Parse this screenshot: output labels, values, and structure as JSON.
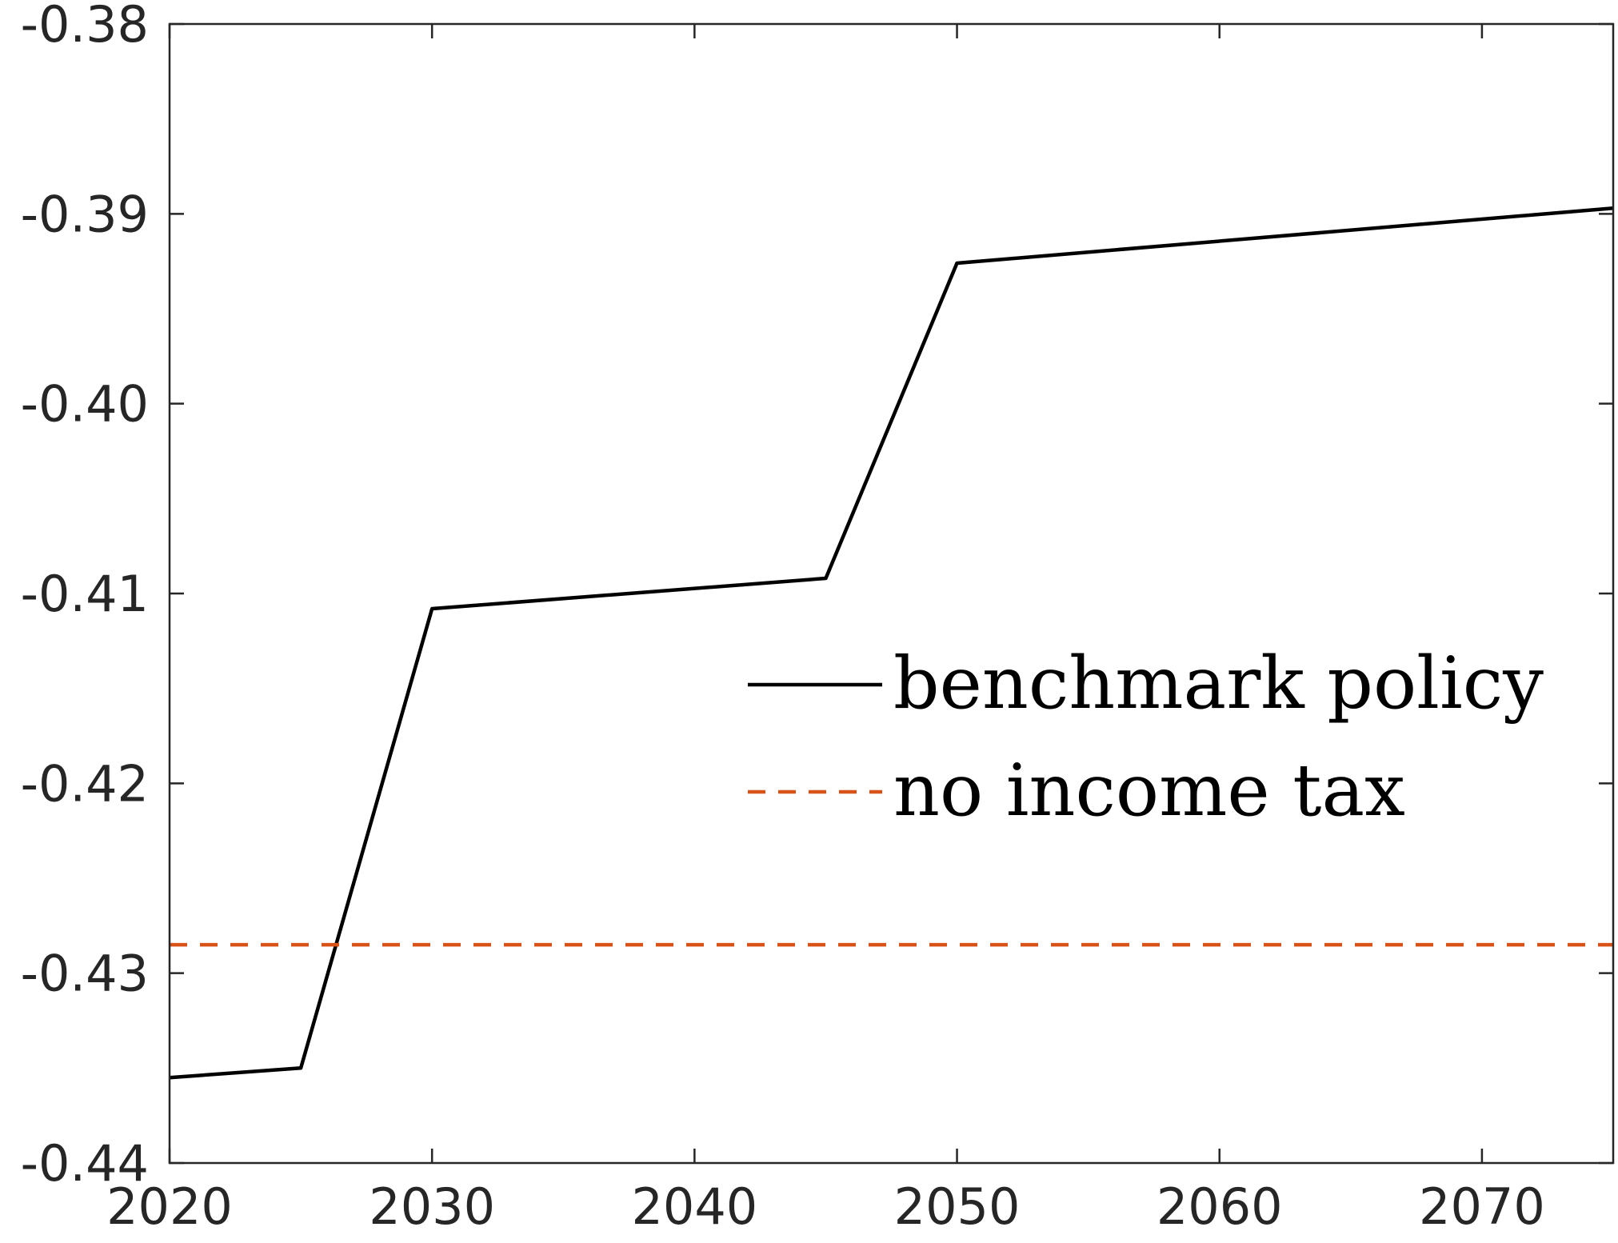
{
  "chart_data": {
    "type": "line",
    "title": "",
    "xlabel": "",
    "ylabel": "",
    "xlim": [
      2020,
      2075
    ],
    "ylim": [
      -0.44,
      -0.38
    ],
    "xticks": [
      2020,
      2030,
      2040,
      2050,
      2060,
      2070
    ],
    "xtick_labels": [
      "2020",
      "2030",
      "2040",
      "2050",
      "2060",
      "2070"
    ],
    "yticks": [
      -0.38,
      -0.39,
      -0.4,
      -0.41,
      -0.42,
      -0.43,
      -0.44
    ],
    "ytick_labels": [
      "-0.38",
      "-0.39",
      "-0.40",
      "-0.41",
      "-0.42",
      "-0.43",
      "-0.44"
    ],
    "grid": false,
    "legend_position": "center-right",
    "series": [
      {
        "name": "benchmark policy",
        "color": "#000000",
        "style": "solid",
        "x": [
          2020,
          2025,
          2030,
          2045,
          2050,
          2075
        ],
        "y": [
          -0.4355,
          -0.435,
          -0.4108,
          -0.4092,
          -0.3926,
          -0.3897
        ]
      },
      {
        "name": "no income tax",
        "color": "#d95319",
        "style": "dashed",
        "x": [
          2020,
          2075
        ],
        "y": [
          -0.4285,
          -0.4285
        ]
      }
    ]
  }
}
